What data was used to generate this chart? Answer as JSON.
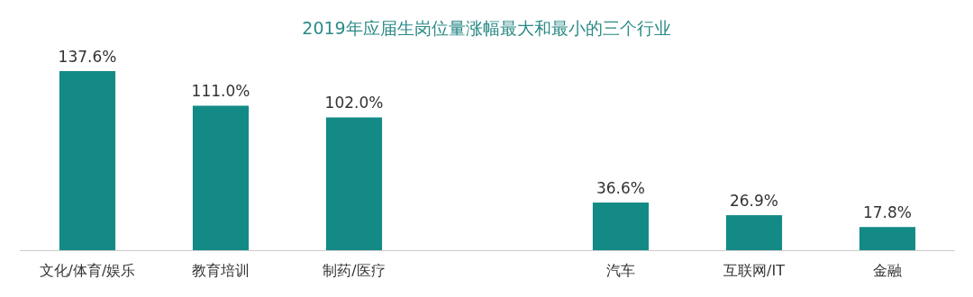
{
  "chart_data": {
    "type": "bar",
    "title": "2019年应届生岗位量涨幅最大和最小的三个行业",
    "categories": [
      "文化/体育/娱乐",
      "教育培训",
      "制药/医疗",
      null,
      "汽车",
      "互联网/IT",
      "金融"
    ],
    "values": [
      137.6,
      111.0,
      102.0,
      null,
      36.6,
      26.9,
      17.8
    ],
    "value_labels": [
      "137.6%",
      "111.0%",
      "102.0%",
      null,
      "36.6%",
      "26.9%",
      "17.8%"
    ],
    "color": "#138a86"
  }
}
